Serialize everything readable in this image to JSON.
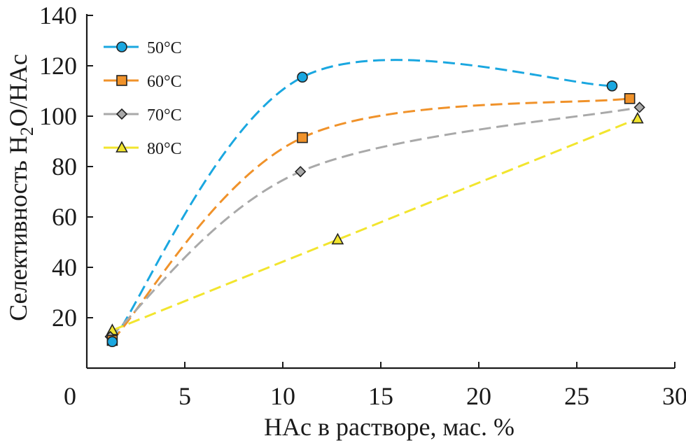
{
  "chart_data": {
    "type": "line",
    "title": "",
    "xlabel": "HAc в растворе, мас. %",
    "ylabel": {
      "prefix": "Селективность H",
      "sub": "2",
      "suffix": "O/HAc"
    },
    "xlim": [
      0,
      30
    ],
    "ylim": [
      0,
      140
    ],
    "xticks": [
      0,
      5,
      10,
      15,
      20,
      25,
      30
    ],
    "yticks": [
      20,
      40,
      60,
      80,
      100,
      120,
      140
    ],
    "grid": false,
    "legend_position": "top-left",
    "series": [
      {
        "name": "50°C",
        "color": "#1aa7e0",
        "marker": "circle",
        "points": [
          [
            1.3,
            10.5
          ],
          [
            11.0,
            115.5
          ],
          [
            26.8,
            112.0
          ]
        ]
      },
      {
        "name": "60°C",
        "color": "#f0922a",
        "marker": "square",
        "points": [
          [
            1.3,
            11.0
          ],
          [
            11.0,
            91.5
          ],
          [
            27.7,
            107.0
          ]
        ]
      },
      {
        "name": "70°C",
        "color": "#a9a9a9",
        "marker": "diamond",
        "points": [
          [
            1.2,
            12.5
          ],
          [
            10.9,
            78.0
          ],
          [
            28.2,
            103.5
          ]
        ]
      },
      {
        "name": "80°C",
        "color": "#f2e52e",
        "marker": "triangle",
        "points": [
          [
            1.3,
            15.0
          ],
          [
            12.8,
            51.0
          ],
          [
            28.1,
            99.0
          ]
        ]
      }
    ]
  }
}
